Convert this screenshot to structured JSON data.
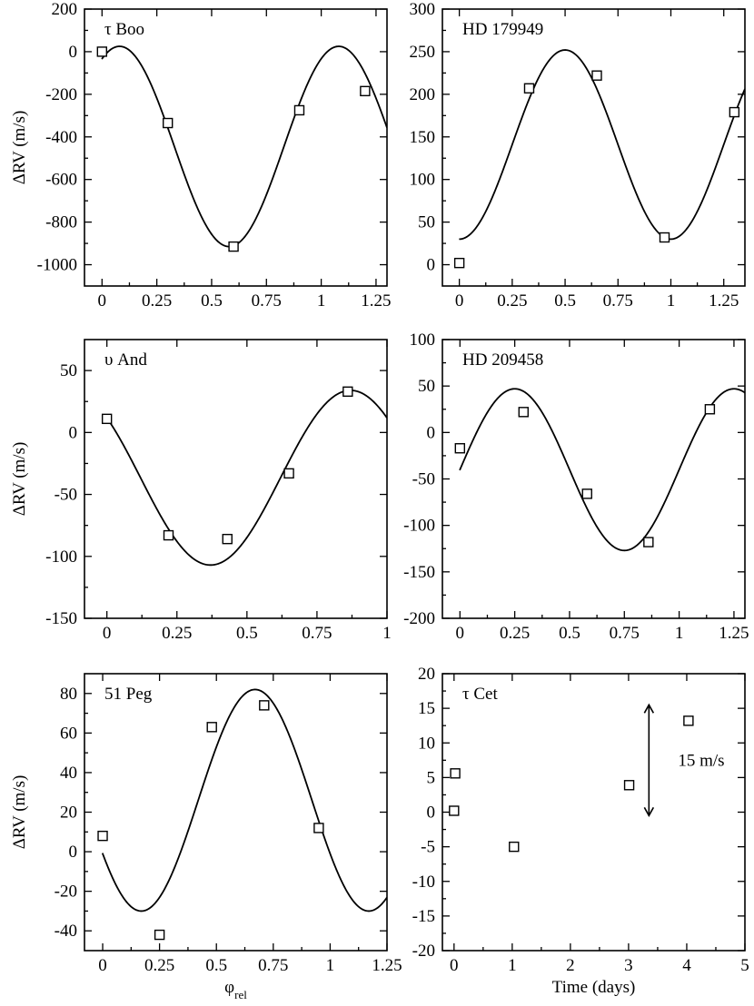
{
  "chart_data": [
    {
      "type": "scatter",
      "panel_label": "τ Boo",
      "xlabel": "",
      "ylabel": "ΔRV (m/s)",
      "xlim": [
        -0.08,
        1.3
      ],
      "ylim": [
        -1100,
        200
      ],
      "xticks": [
        0,
        0.25,
        0.5,
        0.75,
        1,
        1.25
      ],
      "xtick_labels": [
        "0",
        "0.25",
        "0.5",
        "0.75",
        "1",
        "1.25"
      ],
      "yticks": [
        200,
        0,
        -200,
        -400,
        -600,
        -800,
        -1000
      ],
      "ytick_labels": [
        "200",
        "0",
        "-200",
        "-400",
        "-600",
        "-800",
        "-1000"
      ],
      "points": {
        "x": [
          0.0,
          0.3,
          0.6,
          0.9,
          1.2
        ],
        "y": [
          0,
          -335,
          -915,
          -275,
          -185
        ]
      },
      "fit": {
        "offset": -445,
        "amplitude": 470,
        "period": 1.0,
        "phase_max": 0.08
      }
    },
    {
      "type": "scatter",
      "panel_label": "HD 179949",
      "xlabel": "",
      "ylabel": "",
      "xlim": [
        -0.08,
        1.35
      ],
      "ylim": [
        -25,
        300
      ],
      "xticks": [
        0,
        0.25,
        0.5,
        0.75,
        1,
        1.25
      ],
      "xtick_labels": [
        "0",
        "0.25",
        "0.5",
        "0.75",
        "1",
        "1.25"
      ],
      "yticks": [
        300,
        250,
        200,
        150,
        100,
        50,
        0
      ],
      "ytick_labels": [
        "300",
        "250",
        "200",
        "150",
        "100",
        "50",
        "0"
      ],
      "points": {
        "x": [
          0.0,
          0.33,
          0.65,
          0.97,
          1.3
        ],
        "y": [
          2,
          207,
          222,
          32,
          179
        ]
      },
      "fit": {
        "offset": 141,
        "amplitude": 111,
        "period": 1.0,
        "phase_max": 0.5
      }
    },
    {
      "type": "scatter",
      "panel_label": "υ And",
      "xlabel": "",
      "ylabel": "ΔRV (m/s)",
      "xlim": [
        -0.08,
        1.0
      ],
      "ylim": [
        -150,
        75
      ],
      "xticks": [
        0,
        0.25,
        0.5,
        0.75,
        1
      ],
      "xtick_labels": [
        "0",
        "0.25",
        "0.5",
        "0.75",
        "1"
      ],
      "yticks": [
        50,
        0,
        -50,
        -100,
        -150
      ],
      "ytick_labels": [
        "50",
        "0",
        "-50",
        "-100",
        "-150"
      ],
      "points": {
        "x": [
          0.0,
          0.22,
          0.43,
          0.65,
          0.86
        ],
        "y": [
          11,
          -83,
          -86,
          -33,
          33
        ]
      },
      "fit": {
        "offset": -36.5,
        "amplitude": 70.5,
        "period": 1.0,
        "phase_max": 0.87
      }
    },
    {
      "type": "scatter",
      "panel_label": "HD 209458",
      "xlabel": "",
      "ylabel": "",
      "xlim": [
        -0.08,
        1.3
      ],
      "ylim": [
        -200,
        100
      ],
      "xticks": [
        0,
        0.25,
        0.5,
        0.75,
        1,
        1.25
      ],
      "xtick_labels": [
        "0",
        "0.25",
        "0.5",
        "0.75",
        "1",
        "1.25"
      ],
      "yticks": [
        100,
        50,
        0,
        -50,
        -100,
        -150,
        -200
      ],
      "ytick_labels": [
        "100",
        "50",
        "0",
        "-50",
        "-100",
        "-150",
        "-200"
      ],
      "points": {
        "x": [
          0.0,
          0.29,
          0.58,
          0.86,
          1.14
        ],
        "y": [
          -17,
          22,
          -66,
          -118,
          25
        ]
      },
      "fit": {
        "offset": -40,
        "amplitude": 87,
        "period": 1.0,
        "phase_max": 0.25
      }
    },
    {
      "type": "scatter",
      "panel_label": "51 Peg",
      "xlabel": "φ",
      "xlabel_sub": "rel",
      "ylabel": "ΔRV (m/s)",
      "xlim": [
        -0.08,
        1.25
      ],
      "ylim": [
        -50,
        90
      ],
      "xticks": [
        0,
        0.25,
        0.5,
        0.75,
        1,
        1.25
      ],
      "xtick_labels": [
        "0",
        "0.25",
        "0.5",
        "0.75",
        "1",
        "1.25"
      ],
      "yticks": [
        80,
        60,
        40,
        20,
        0,
        -20,
        -40
      ],
      "ytick_labels": [
        "80",
        "60",
        "40",
        "20",
        "0",
        "-20",
        "-40"
      ],
      "points": {
        "x": [
          0.0,
          0.25,
          0.48,
          0.71,
          0.95
        ],
        "y": [
          8,
          -42,
          63,
          74,
          12
        ]
      },
      "fit": {
        "offset": 26,
        "amplitude": 56,
        "period": 1.0,
        "phase_max": 0.67
      }
    },
    {
      "type": "scatter",
      "panel_label": "τ Cet",
      "xlabel": "Time (days)",
      "ylabel": "",
      "xlim": [
        -0.2,
        5.0
      ],
      "ylim": [
        -20,
        20
      ],
      "xticks": [
        0,
        1,
        2,
        3,
        4,
        5
      ],
      "xtick_labels": [
        "0",
        "1",
        "2",
        "3",
        "4",
        "5"
      ],
      "yticks": [
        20,
        15,
        10,
        5,
        0,
        -5,
        -10,
        -15,
        -20
      ],
      "ytick_labels": [
        "20",
        "15",
        "10",
        "5",
        "0",
        "-5",
        "-10",
        "-15",
        "-20"
      ],
      "points": {
        "x": [
          0.0,
          0.02,
          1.03,
          3.01,
          4.03
        ],
        "y": [
          0.2,
          5.6,
          -5.0,
          3.9,
          13.2
        ]
      },
      "scale_bar": {
        "label": "15 m/s",
        "x": 3.35,
        "y_from": -0.5,
        "y_to": 15.5
      }
    }
  ]
}
